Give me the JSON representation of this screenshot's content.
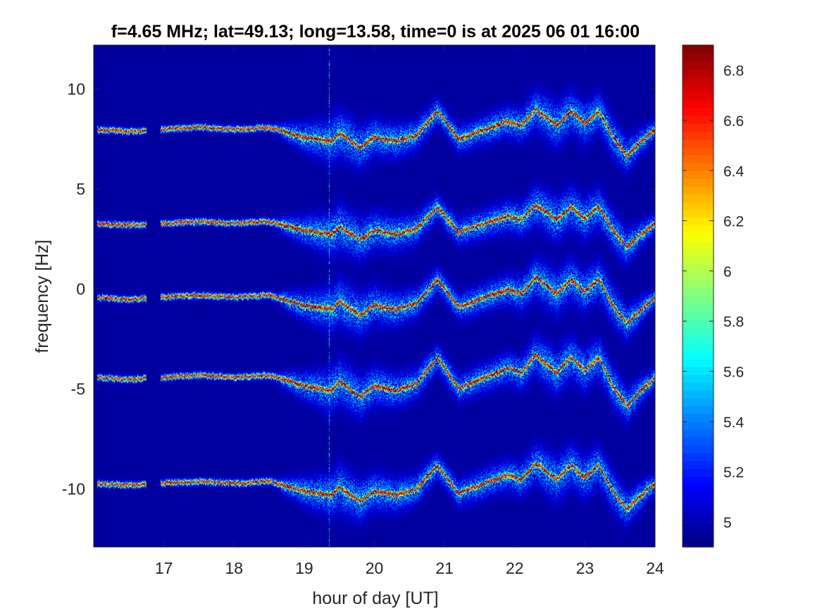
{
  "chart_data": {
    "type": "heatmap",
    "title": "f=4.65 MHz;  lat=49.13; long=13.58, time=0 is at 2025 06 01 16:00",
    "xlabel": "hour of day [UT]",
    "ylabel": "frequency [Hz]",
    "xlim": [
      16.0,
      24.0
    ],
    "ylim": [
      -12.9,
      12.2
    ],
    "xticks": [
      17,
      18,
      19,
      20,
      21,
      22,
      23,
      24
    ],
    "yticks": [
      -10,
      -5,
      0,
      5,
      10
    ],
    "xtick_labels": [
      "17",
      "18",
      "19",
      "20",
      "21",
      "22",
      "23",
      "24"
    ],
    "ytick_labels": [
      "-10",
      "-5",
      "0",
      "5",
      "10"
    ],
    "colorbar": {
      "colormap": "jet",
      "range": [
        4.9,
        6.9
      ],
      "ticks": [
        5.0,
        5.2,
        5.4,
        5.6,
        5.8,
        6.0,
        6.2,
        6.4,
        6.6,
        6.8
      ],
      "tick_labels": [
        "5",
        "5.2",
        "5.4",
        "5.6",
        "5.8",
        "6",
        "6.2",
        "6.4",
        "6.6",
        "6.8"
      ]
    },
    "background_value": 4.9,
    "traces": [
      {
        "base": 8.0,
        "wave_scale": 1.0
      },
      {
        "base": 3.3,
        "wave_scale": 0.9
      },
      {
        "base": -0.4,
        "wave_scale": 1.0
      },
      {
        "base": -4.4,
        "wave_scale": 1.1
      },
      {
        "base": -9.7,
        "wave_scale": 1.0
      }
    ],
    "trace_profile": {
      "hours": [
        16.0,
        16.5,
        17.0,
        17.5,
        18.0,
        18.5,
        19.0,
        19.4,
        19.5,
        19.8,
        20.0,
        20.3,
        20.6,
        20.9,
        21.2,
        21.5,
        21.9,
        22.1,
        22.3,
        22.6,
        22.8,
        23.0,
        23.2,
        23.4,
        23.6,
        23.8,
        24.0
      ],
      "offsets": [
        0.0,
        -0.1,
        0.0,
        0.1,
        0.0,
        0.1,
        -0.4,
        -0.6,
        -0.2,
        -0.9,
        -0.4,
        -0.6,
        -0.3,
        0.9,
        -0.5,
        -0.1,
        0.4,
        0.2,
        1.0,
        0.2,
        0.9,
        0.3,
        0.9,
        -0.4,
        -1.3,
        -0.6,
        0.0
      ]
    },
    "spread_profile": {
      "hours": [
        16.0,
        18.5,
        19.0,
        19.5,
        20.0,
        21.0,
        22.0,
        22.5,
        23.0,
        23.5,
        24.0
      ],
      "widths": [
        0.25,
        0.3,
        0.9,
        1.5,
        1.2,
        0.8,
        1.0,
        1.4,
        1.3,
        1.2,
        0.6
      ]
    },
    "data_gaps_hours": [
      [
        16.0,
        16.05
      ],
      [
        16.75,
        16.95
      ]
    ],
    "vertical_streak_hour": 19.35
  }
}
